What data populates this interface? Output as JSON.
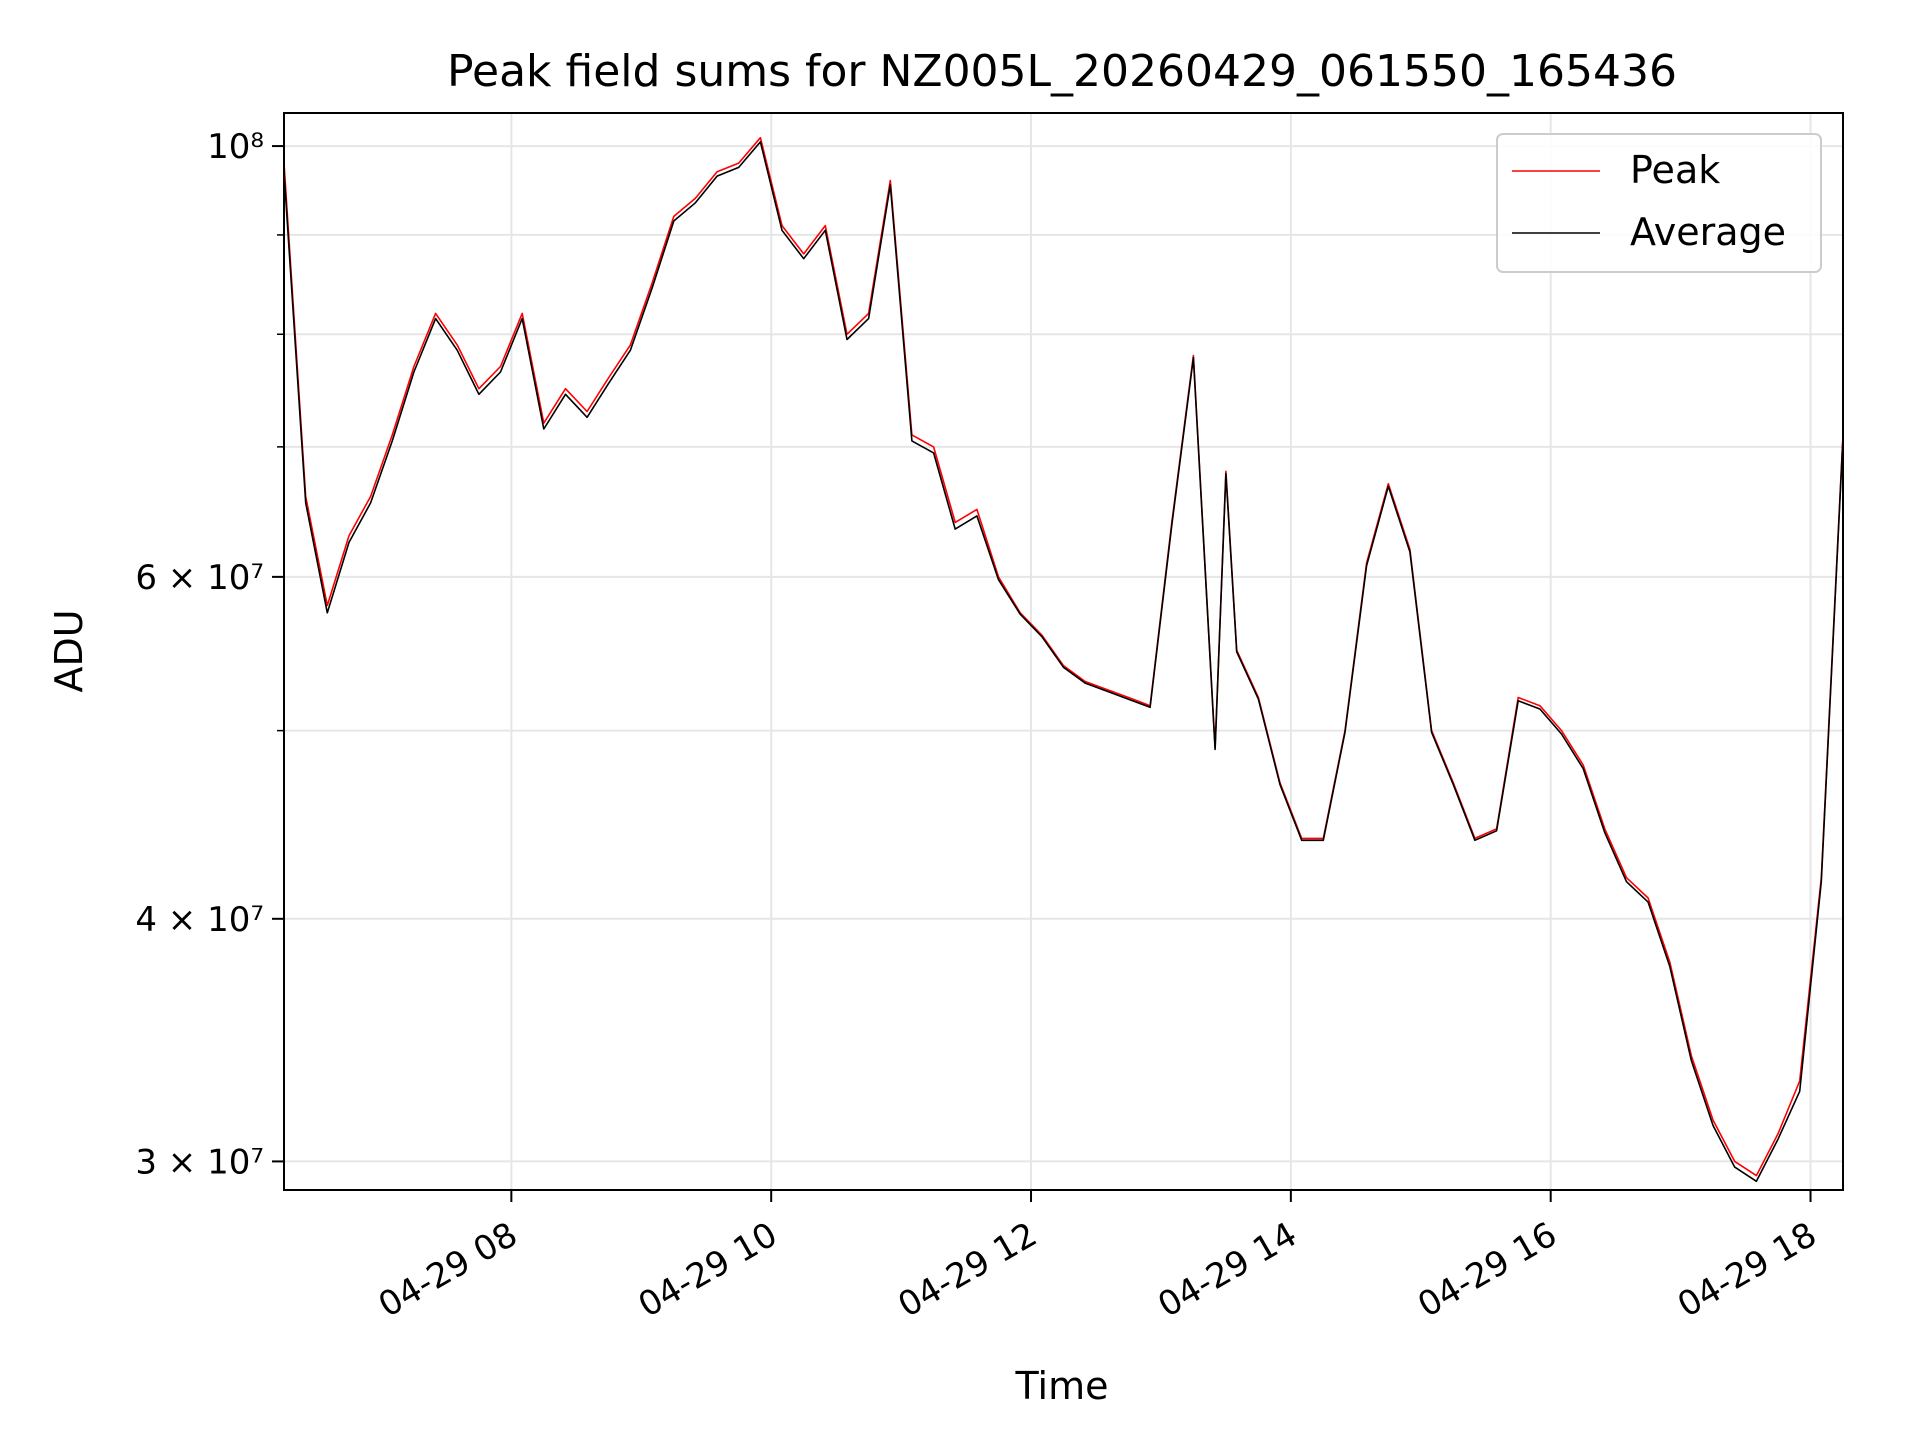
{
  "chart_data": {
    "type": "line",
    "title": "Peak field sums for NZ005L_20260429_061550_165436",
    "xlabel": "Time",
    "ylabel": "ADU",
    "y_scale": "log",
    "grid": true,
    "legend_position": "top-right",
    "x_range": [
      "2026-04-29 06:15",
      "2026-04-29 18:15"
    ],
    "y_range": [
      29000000,
      104000000
    ],
    "x_ticks": [
      {
        "value": "2026-04-29 08:00",
        "label": "04-29 08"
      },
      {
        "value": "2026-04-29 10:00",
        "label": "04-29 10"
      },
      {
        "value": "2026-04-29 12:00",
        "label": "04-29 12"
      },
      {
        "value": "2026-04-29 14:00",
        "label": "04-29 14"
      },
      {
        "value": "2026-04-29 16:00",
        "label": "04-29 16"
      },
      {
        "value": "2026-04-29 18:00",
        "label": "04-29 18"
      }
    ],
    "y_ticks": [
      {
        "value": 30000000,
        "label": "3 × 10⁷"
      },
      {
        "value": 40000000,
        "label": "4 × 10⁷"
      },
      {
        "value": 60000000,
        "label": "6 × 10⁷"
      },
      {
        "value": 100000000,
        "label": "10⁸"
      }
    ],
    "y_minor_gridlines": [
      50000000,
      70000000,
      80000000,
      90000000
    ],
    "x": [
      "06:15",
      "06:25",
      "06:35",
      "06:45",
      "06:55",
      "07:05",
      "07:15",
      "07:25",
      "07:35",
      "07:45",
      "07:55",
      "08:05",
      "08:15",
      "08:25",
      "08:35",
      "08:45",
      "08:55",
      "09:05",
      "09:15",
      "09:25",
      "09:35",
      "09:45",
      "09:55",
      "10:05",
      "10:15",
      "10:25",
      "10:35",
      "10:45",
      "10:55",
      "11:05",
      "11:15",
      "11:25",
      "11:35",
      "11:45",
      "11:55",
      "12:05",
      "12:15",
      "12:25",
      "12:35",
      "12:45",
      "12:55",
      "13:05",
      "13:15",
      "13:25",
      "13:30",
      "13:35",
      "13:45",
      "13:55",
      "14:05",
      "14:15",
      "14:25",
      "14:35",
      "14:45",
      "14:55",
      "15:05",
      "15:15",
      "15:25",
      "15:35",
      "15:45",
      "15:55",
      "16:05",
      "16:15",
      "16:25",
      "16:35",
      "16:45",
      "16:55",
      "17:05",
      "17:15",
      "17:25",
      "17:35",
      "17:45",
      "17:55",
      "18:05",
      "18:15"
    ],
    "series": [
      {
        "name": "Peak",
        "color": "#ff0000",
        "values": [
          98000000,
          66000000,
          58000000,
          63000000,
          66000000,
          71000000,
          77000000,
          82000000,
          79000000,
          75000000,
          77000000,
          82000000,
          72000000,
          75000000,
          73000000,
          76000000,
          79000000,
          85000000,
          92000000,
          94000000,
          97000000,
          98000000,
          101000000,
          91000000,
          88000000,
          91000000,
          80000000,
          82000000,
          96000000,
          71000000,
          70000000,
          64000000,
          65000000,
          60000000,
          57500000,
          56000000,
          54000000,
          53000000,
          52500000,
          52000000,
          51500000,
          64000000,
          78000000,
          49000000,
          68000000,
          55000000,
          52000000,
          47000000,
          44000000,
          44000000,
          50000000,
          61000000,
          67000000,
          62000000,
          50000000,
          47000000,
          44000000,
          44500000,
          52000000,
          51500000,
          50000000,
          48000000,
          44500000,
          42000000,
          41000000,
          38000000,
          34000000,
          31500000,
          30000000,
          29500000,
          31000000,
          33000000,
          42000000,
          71000000
        ]
      },
      {
        "name": "Average",
        "color": "#000000",
        "values": [
          97000000,
          65500000,
          57500000,
          62500000,
          65500000,
          70500000,
          76500000,
          81500000,
          78500000,
          74500000,
          76500000,
          81500000,
          71500000,
          74500000,
          72500000,
          75500000,
          78500000,
          84500000,
          91500000,
          93500000,
          96500000,
          97500000,
          100500000,
          90500000,
          87500000,
          90500000,
          79500000,
          81500000,
          95500000,
          70500000,
          69500000,
          63500000,
          64500000,
          59800000,
          57400000,
          55900000,
          53900000,
          52900000,
          52400000,
          51900000,
          51400000,
          63800000,
          77800000,
          48900000,
          67800000,
          54900000,
          51900000,
          46900000,
          43900000,
          43900000,
          49900000,
          60800000,
          66800000,
          61800000,
          49900000,
          46900000,
          43900000,
          44400000,
          51800000,
          51300000,
          49800000,
          47800000,
          44300000,
          41800000,
          40800000,
          37800000,
          33800000,
          31300000,
          29800000,
          29300000,
          30800000,
          32600000,
          41800000,
          70800000
        ]
      }
    ]
  }
}
